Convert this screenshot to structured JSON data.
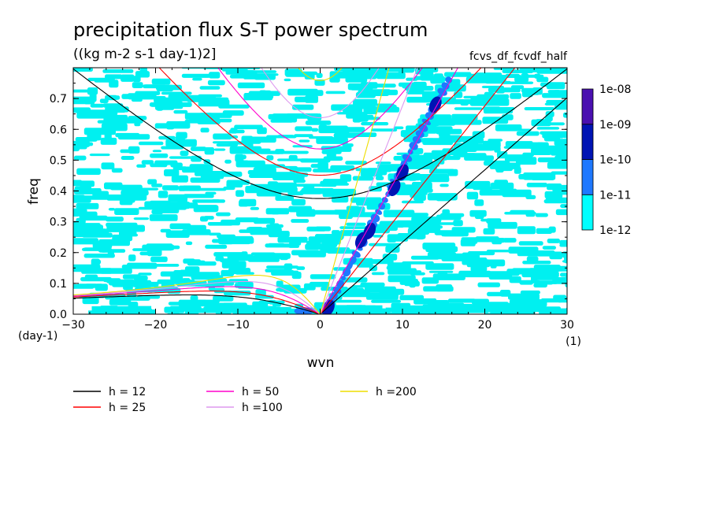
{
  "chart_data": {
    "type": "heatmap",
    "title": "precipitation flux S-T power spectrum",
    "subtitle": "((kg m-2 s-1 day-1)2]",
    "dataset_label": "fcvs_df_fcvdf_half",
    "xlabel": "wvn",
    "ylabel": "freq",
    "x_unit": "(1)",
    "y_unit": "(day-1)",
    "xlim": [
      -30,
      30
    ],
    "ylim": [
      0,
      0.8
    ],
    "xticks": [
      -30,
      -20,
      -10,
      0,
      10,
      20,
      30
    ],
    "yticks": [
      0.0,
      0.1,
      0.2,
      0.3,
      0.4,
      0.5,
      0.6,
      0.7
    ],
    "grid": false,
    "colorbar": {
      "levels": [
        "1e-12",
        "1e-11",
        "1e-10",
        "1e-09",
        "1e-08"
      ],
      "colors": [
        "#00ffff",
        "#1e78ff",
        "#0014b4",
        "#4a10b0"
      ]
    },
    "power_fill_color": "#00f0f0",
    "dispersion_curves": [
      {
        "name": "h = 12",
        "h": 12,
        "color": "#000000"
      },
      {
        "name": "h = 25",
        "h": 25,
        "color": "#ff0000"
      },
      {
        "name": "h = 50",
        "h": 50,
        "color": "#ff00cc"
      },
      {
        "name": "h =100",
        "h": 100,
        "color": "#dd99ee"
      },
      {
        "name": "h =200",
        "h": 200,
        "color": "#eedd00"
      }
    ],
    "power_peaks": [
      {
        "wvn": 5,
        "freq": 0.24,
        "level": "1e-10"
      },
      {
        "wvn": 6,
        "freq": 0.27,
        "level": "1e-10"
      },
      {
        "wvn": 9,
        "freq": 0.41,
        "level": "1e-10"
      },
      {
        "wvn": 10,
        "freq": 0.46,
        "level": "1e-10"
      },
      {
        "wvn": 14,
        "freq": 0.68,
        "level": "1e-10"
      },
      {
        "wvn": 1,
        "freq": 0.02,
        "level": "1e-10"
      }
    ]
  }
}
